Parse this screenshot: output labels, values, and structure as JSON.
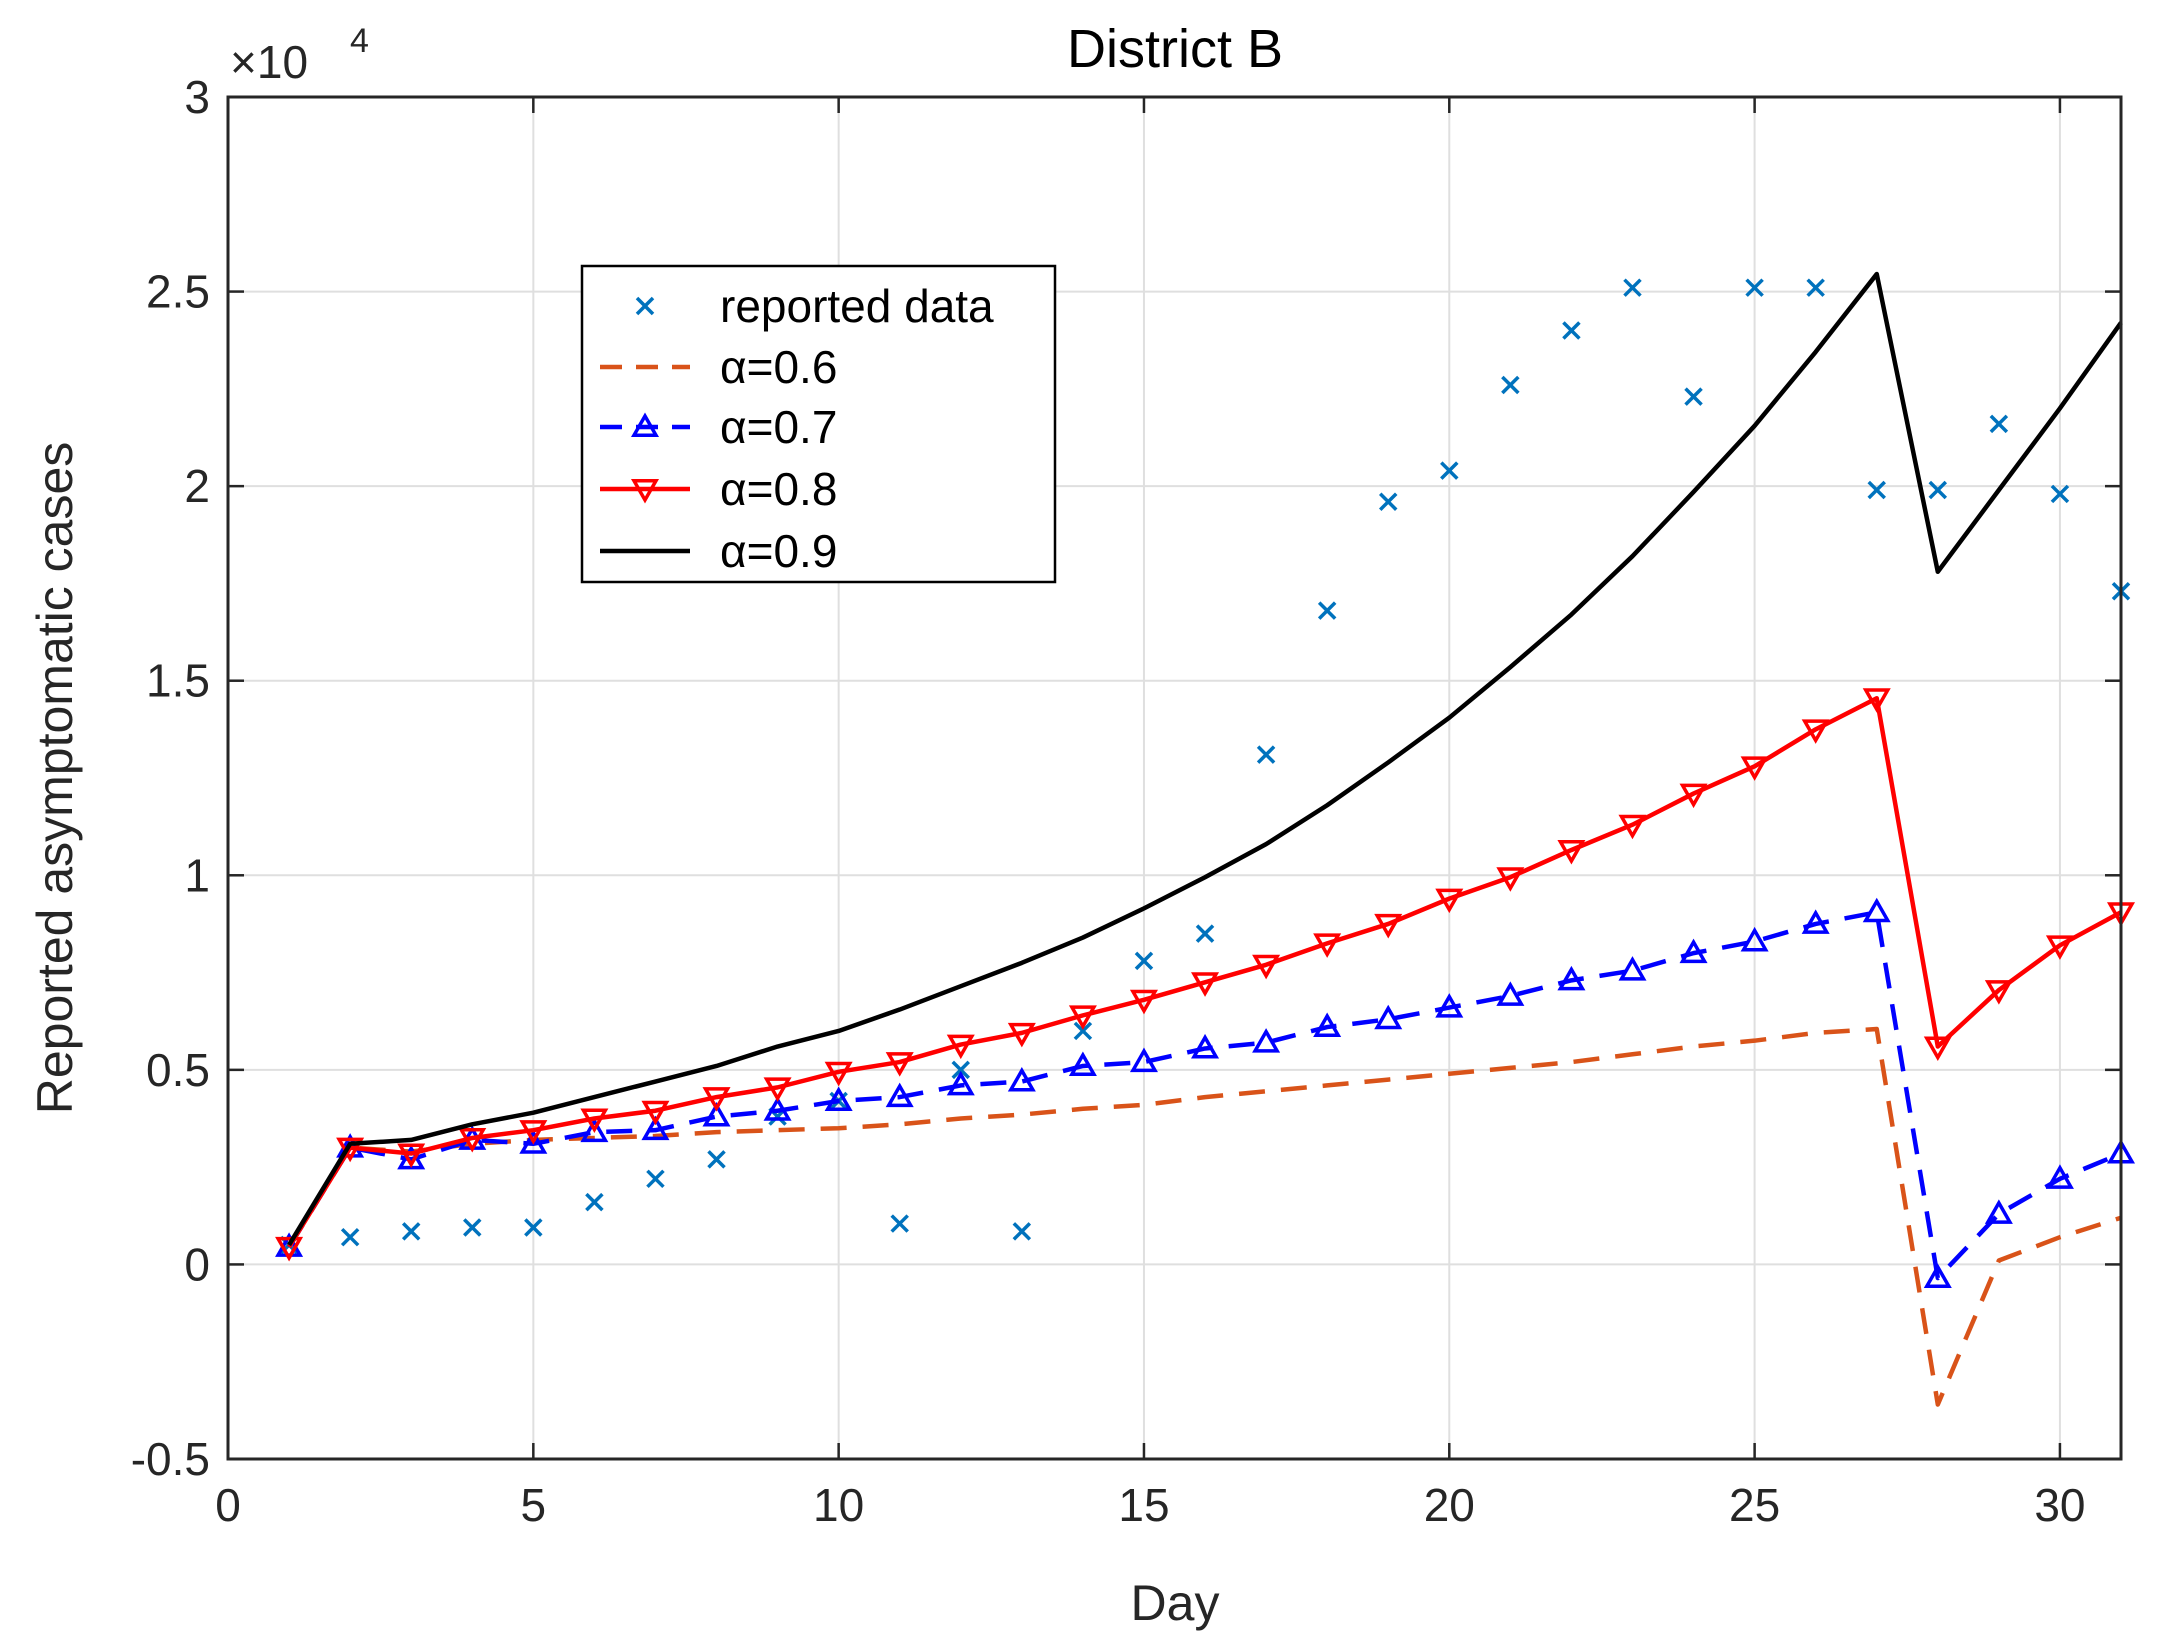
{
  "chart_data": {
    "type": "line",
    "title": "District B",
    "xlabel": "Day",
    "ylabel": "Reported asymptomatic cases",
    "xlim": [
      0,
      31
    ],
    "ylim": [
      -5000,
      30000
    ],
    "grid": true,
    "legend_position": "upper-left-inside",
    "x_ticks": [
      0,
      5,
      10,
      15,
      20,
      25,
      30
    ],
    "x_tick_labels": [
      "0",
      "5",
      "10",
      "15",
      "20",
      "25",
      "30"
    ],
    "y_ticks": [
      -5000,
      0,
      5000,
      10000,
      15000,
      20000,
      25000,
      30000
    ],
    "y_tick_labels": [
      "-0.5",
      "0",
      "0.5",
      "1",
      "1.5",
      "2",
      "2.5",
      "3"
    ],
    "y_exponent_label": {
      "base": "×10",
      "power": "4"
    },
    "x": [
      1,
      2,
      3,
      4,
      5,
      6,
      7,
      8,
      9,
      10,
      11,
      12,
      13,
      14,
      15,
      16,
      17,
      18,
      19,
      20,
      21,
      22,
      23,
      24,
      25,
      26,
      27,
      28,
      29,
      30,
      31
    ],
    "series": [
      {
        "name": "reported data",
        "legend_label": "reported data",
        "style": "markers",
        "marker": "x",
        "color": "#0072BD",
        "values": [
          500,
          700,
          850,
          950,
          950,
          1600,
          2200,
          2700,
          3800,
          4200,
          1050,
          5000,
          850,
          6000,
          7800,
          8500,
          13100,
          16800,
          19600,
          20400,
          22600,
          24000,
          25100,
          22300,
          25100,
          25100,
          19900,
          19900,
          21600,
          19800,
          17300
        ]
      },
      {
        "name": "alpha=0.6",
        "legend_label": "α=0.6",
        "style": "dashed",
        "marker": "none",
        "color": "#D95319",
        "values": [
          450,
          3000,
          2900,
          3100,
          3200,
          3250,
          3300,
          3400,
          3450,
          3500,
          3600,
          3750,
          3850,
          4000,
          4100,
          4300,
          4450,
          4600,
          4750,
          4900,
          5050,
          5200,
          5400,
          5600,
          5750,
          5950,
          6050,
          -3600,
          100,
          700,
          1200
        ]
      },
      {
        "name": "alpha=0.7",
        "legend_label": "α=0.7",
        "style": "dashed",
        "marker": "triangle-up",
        "color": "#0000FF",
        "values": [
          450,
          3000,
          2700,
          3200,
          3100,
          3400,
          3450,
          3800,
          3950,
          4200,
          4300,
          4600,
          4700,
          5100,
          5200,
          5550,
          5700,
          6100,
          6300,
          6600,
          6900,
          7300,
          7550,
          8000,
          8300,
          8750,
          9050,
          -350,
          1300,
          2200,
          2850
        ]
      },
      {
        "name": "alpha=0.8",
        "legend_label": "α=0.8",
        "style": "solid",
        "marker": "triangle-down",
        "color": "#FF0000",
        "values": [
          450,
          3000,
          2850,
          3250,
          3450,
          3750,
          3950,
          4300,
          4550,
          4950,
          5200,
          5650,
          5950,
          6400,
          6800,
          7250,
          7700,
          8250,
          8750,
          9400,
          9950,
          10650,
          11300,
          12100,
          12800,
          13750,
          14550,
          5600,
          7050,
          8200,
          9050
        ]
      },
      {
        "name": "alpha=0.9",
        "legend_label": "α=0.9",
        "style": "solid",
        "marker": "none",
        "color": "#000000",
        "values": [
          500,
          3100,
          3200,
          3600,
          3900,
          4300,
          4700,
          5100,
          5600,
          6000,
          6550,
          7150,
          7750,
          8400,
          9150,
          9950,
          10800,
          11800,
          12900,
          14050,
          15350,
          16700,
          18200,
          19850,
          21550,
          23450,
          25450,
          17800,
          19900,
          22000,
          24200
        ]
      }
    ]
  },
  "colors": {
    "axis": "#262626",
    "grid": "#DFDFDF",
    "background": "#FFFFFF"
  }
}
